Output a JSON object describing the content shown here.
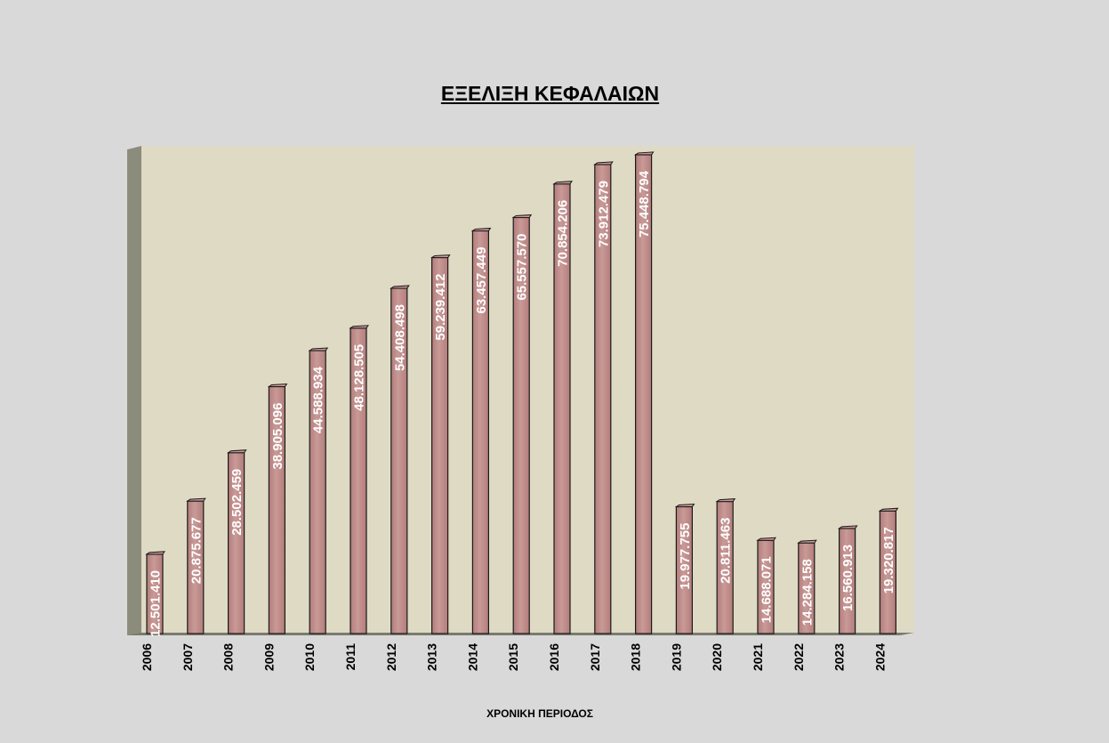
{
  "chart_data": {
    "type": "bar",
    "title": "ΕΞΕΛΙΞΗ ΚΕΦΑΛΑΙΩΝ",
    "xlabel": "ΧΡΟΝΙΚΗ ΠΕΡΙΟΔΟΣ",
    "ylabel": "",
    "categories": [
      "2006",
      "2007",
      "2008",
      "2009",
      "2010",
      "2011",
      "2012",
      "2013",
      "2014",
      "2015",
      "2016",
      "2017",
      "2018",
      "2019",
      "2020",
      "2021",
      "2022",
      "2023",
      "2024"
    ],
    "values": [
      12501410,
      20875677,
      28502459,
      38905096,
      44588934,
      48128505,
      54408498,
      59239412,
      63457449,
      65557570,
      70854206,
      73912479,
      75448794,
      19977755,
      20811463,
      14688071,
      14284158,
      16560913,
      19320817
    ],
    "data_labels": [
      "12.501.410",
      "20.875.677",
      "28.502.459",
      "38.905.096",
      "44.588.934",
      "48.128.505",
      "54.408.498",
      "59.239.412",
      "63.457.449",
      "65.557.570",
      "70.854.206",
      "73.912.479",
      "75.448.794",
      "19.977.755",
      "20.811.463",
      "14.688.071",
      "14.284.158",
      "16.560.913",
      "19.320.817"
    ],
    "ylim": [
      0,
      76000000
    ],
    "grid": false,
    "legend": "none",
    "colors": {
      "page_background": "#d9d9d9",
      "plot_background": "#dedac4",
      "wall": "#8c8c7c",
      "bar_fill": "#b27d7b",
      "bar_highlight": "#c99a97",
      "bar_outline": "#1a1a1a",
      "data_label": "#ffffff",
      "tick_label": "#000000"
    }
  }
}
